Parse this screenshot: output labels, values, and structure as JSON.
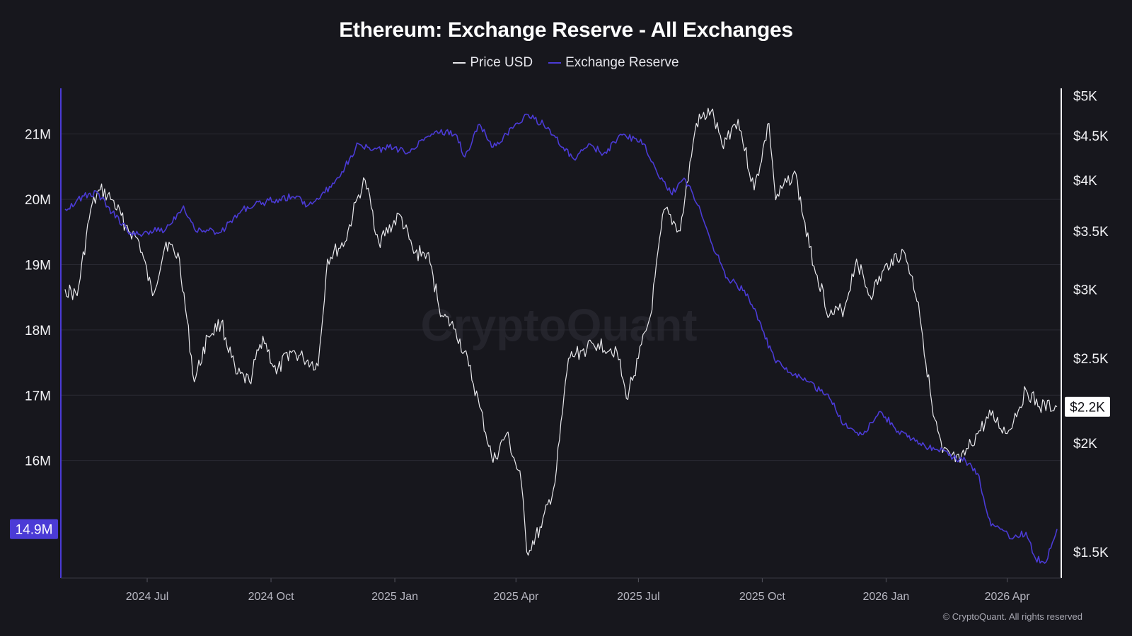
{
  "chart_data": {
    "type": "line",
    "title": "Ethereum: Exchange Reserve - All Exchanges",
    "watermark": "CryptoQuant",
    "copyright": "© CryptoQuant. All rights reserved",
    "grid": true,
    "legend_placement": "top-center",
    "x_axis": {
      "range": [
        "2024-05-01",
        "2026-05-08"
      ],
      "ticks": [
        {
          "date": "2024-07-01",
          "label": "2024 Jul"
        },
        {
          "date": "2024-10-01",
          "label": "2024 Oct"
        },
        {
          "date": "2025-01-01",
          "label": "2025 Jan"
        },
        {
          "date": "2025-04-01",
          "label": "2025 Apr"
        },
        {
          "date": "2025-07-01",
          "label": "2025 Jul"
        },
        {
          "date": "2025-10-01",
          "label": "2025 Oct"
        },
        {
          "date": "2026-01-01",
          "label": "2026 Jan"
        },
        {
          "date": "2026-04-01",
          "label": "2026 Apr"
        }
      ]
    },
    "y_left": {
      "series": "Exchange Reserve",
      "unit": "ETH",
      "range": [
        14200000,
        21700000
      ],
      "ticks": [
        {
          "value": 21000000,
          "label": "21M"
        },
        {
          "value": 20000000,
          "label": "20M"
        },
        {
          "value": 19000000,
          "label": "19M"
        },
        {
          "value": 18000000,
          "label": "18M"
        },
        {
          "value": 17000000,
          "label": "17M"
        },
        {
          "value": 16000000,
          "label": "16M"
        }
      ],
      "current_label": "14.9M"
    },
    "y_right": {
      "series": "Price USD",
      "scale": "log",
      "range": [
        1400,
        5100
      ],
      "ticks": [
        {
          "value": 5000,
          "label": "$5K"
        },
        {
          "value": 4500,
          "label": "$4.5K"
        },
        {
          "value": 4000,
          "label": "$4K"
        },
        {
          "value": 3500,
          "label": "$3.5K"
        },
        {
          "value": 3000,
          "label": "$3K"
        },
        {
          "value": 2500,
          "label": "$2.5K"
        },
        {
          "value": 2000,
          "label": "$2K"
        },
        {
          "value": 1500,
          "label": "$1.5K"
        }
      ],
      "current_label": "$2.2K"
    },
    "series": [
      {
        "name": "Price USD",
        "axis": "right",
        "color": "#e8e8ec",
        "points": [
          [
            "2024-05-01",
            3000
          ],
          [
            "2024-05-10",
            2950
          ],
          [
            "2024-05-20",
            3700
          ],
          [
            "2024-05-27",
            3900
          ],
          [
            "2024-06-05",
            3800
          ],
          [
            "2024-06-15",
            3550
          ],
          [
            "2024-06-25",
            3400
          ],
          [
            "2024-07-05",
            2950
          ],
          [
            "2024-07-15",
            3400
          ],
          [
            "2024-07-25",
            3250
          ],
          [
            "2024-08-05",
            2350
          ],
          [
            "2024-08-15",
            2650
          ],
          [
            "2024-08-25",
            2750
          ],
          [
            "2024-09-05",
            2400
          ],
          [
            "2024-09-15",
            2350
          ],
          [
            "2024-09-25",
            2650
          ],
          [
            "2024-10-05",
            2400
          ],
          [
            "2024-10-15",
            2550
          ],
          [
            "2024-10-25",
            2500
          ],
          [
            "2024-11-05",
            2450
          ],
          [
            "2024-11-12",
            3250
          ],
          [
            "2024-11-25",
            3400
          ],
          [
            "2024-12-05",
            3850
          ],
          [
            "2024-12-10",
            4000
          ],
          [
            "2024-12-20",
            3400
          ],
          [
            "2025-01-05",
            3650
          ],
          [
            "2025-01-15",
            3300
          ],
          [
            "2025-01-25",
            3300
          ],
          [
            "2025-02-05",
            2800
          ],
          [
            "2025-02-15",
            2700
          ],
          [
            "2025-02-25",
            2450
          ],
          [
            "2025-03-05",
            2200
          ],
          [
            "2025-03-15",
            1900
          ],
          [
            "2025-03-25",
            2050
          ],
          [
            "2025-04-05",
            1800
          ],
          [
            "2025-04-09",
            1500
          ],
          [
            "2025-04-20",
            1600
          ],
          [
            "2025-04-30",
            1800
          ],
          [
            "2025-05-10",
            2500
          ],
          [
            "2025-05-20",
            2550
          ],
          [
            "2025-06-01",
            2600
          ],
          [
            "2025-06-15",
            2550
          ],
          [
            "2025-06-22",
            2250
          ],
          [
            "2025-07-01",
            2500
          ],
          [
            "2025-07-10",
            2800
          ],
          [
            "2025-07-20",
            3700
          ],
          [
            "2025-08-01",
            3500
          ],
          [
            "2025-08-13",
            4650
          ],
          [
            "2025-08-24",
            4800
          ],
          [
            "2025-09-01",
            4400
          ],
          [
            "2025-09-13",
            4700
          ],
          [
            "2025-09-25",
            3900
          ],
          [
            "2025-10-06",
            4650
          ],
          [
            "2025-10-11",
            3800
          ],
          [
            "2025-10-25",
            4100
          ],
          [
            "2025-11-05",
            3350
          ],
          [
            "2025-11-20",
            2800
          ],
          [
            "2025-12-01",
            2850
          ],
          [
            "2025-12-10",
            3250
          ],
          [
            "2025-12-20",
            2950
          ],
          [
            "2026-01-05",
            3250
          ],
          [
            "2026-01-15",
            3300
          ],
          [
            "2026-01-25",
            2900
          ],
          [
            "2026-02-05",
            2150
          ],
          [
            "2026-02-12",
            1950
          ],
          [
            "2026-02-25",
            1900
          ],
          [
            "2026-03-10",
            2050
          ],
          [
            "2026-03-20",
            2150
          ],
          [
            "2026-04-01",
            2050
          ],
          [
            "2026-04-15",
            2300
          ],
          [
            "2026-04-25",
            2200
          ],
          [
            "2026-05-08",
            2200
          ]
        ]
      },
      {
        "name": "Exchange Reserve",
        "axis": "left",
        "color": "#4b3bd6",
        "points": [
          [
            "2024-05-01",
            19850000
          ],
          [
            "2024-05-15",
            20050000
          ],
          [
            "2024-05-25",
            20100000
          ],
          [
            "2024-06-05",
            19800000
          ],
          [
            "2024-06-20",
            19450000
          ],
          [
            "2024-07-01",
            19500000
          ],
          [
            "2024-07-15",
            19550000
          ],
          [
            "2024-07-28",
            19900000
          ],
          [
            "2024-08-05",
            19550000
          ],
          [
            "2024-08-25",
            19500000
          ],
          [
            "2024-09-10",
            19850000
          ],
          [
            "2024-09-25",
            19950000
          ],
          [
            "2024-10-05",
            20000000
          ],
          [
            "2024-10-20",
            20050000
          ],
          [
            "2024-10-28",
            19900000
          ],
          [
            "2024-11-10",
            20100000
          ],
          [
            "2024-11-25",
            20500000
          ],
          [
            "2024-12-05",
            20850000
          ],
          [
            "2024-12-15",
            20750000
          ],
          [
            "2025-01-01",
            20800000
          ],
          [
            "2025-01-10",
            20700000
          ],
          [
            "2025-01-20",
            20900000
          ],
          [
            "2025-02-01",
            21050000
          ],
          [
            "2025-02-15",
            21000000
          ],
          [
            "2025-02-22",
            20650000
          ],
          [
            "2025-03-05",
            21150000
          ],
          [
            "2025-03-15",
            20800000
          ],
          [
            "2025-03-25",
            21000000
          ],
          [
            "2025-04-10",
            21300000
          ],
          [
            "2025-04-25",
            21100000
          ],
          [
            "2025-05-05",
            20800000
          ],
          [
            "2025-05-15",
            20600000
          ],
          [
            "2025-05-25",
            20850000
          ],
          [
            "2025-06-05",
            20700000
          ],
          [
            "2025-06-20",
            21000000
          ],
          [
            "2025-07-05",
            20850000
          ],
          [
            "2025-07-15",
            20400000
          ],
          [
            "2025-07-25",
            20100000
          ],
          [
            "2025-08-05",
            20300000
          ],
          [
            "2025-08-15",
            19900000
          ],
          [
            "2025-08-25",
            19300000
          ],
          [
            "2025-09-05",
            18800000
          ],
          [
            "2025-09-20",
            18550000
          ],
          [
            "2025-10-01",
            18000000
          ],
          [
            "2025-10-10",
            17550000
          ],
          [
            "2025-10-20",
            17350000
          ],
          [
            "2025-11-05",
            17200000
          ],
          [
            "2025-11-20",
            16950000
          ],
          [
            "2025-12-01",
            16550000
          ],
          [
            "2025-12-15",
            16400000
          ],
          [
            "2025-12-28",
            16750000
          ],
          [
            "2026-01-10",
            16450000
          ],
          [
            "2026-01-25",
            16250000
          ],
          [
            "2026-02-05",
            16200000
          ],
          [
            "2026-02-20",
            16050000
          ],
          [
            "2026-03-01",
            16000000
          ],
          [
            "2026-03-10",
            15800000
          ],
          [
            "2026-03-20",
            15000000
          ],
          [
            "2026-03-28",
            14950000
          ],
          [
            "2026-04-05",
            14800000
          ],
          [
            "2026-04-15",
            14900000
          ],
          [
            "2026-04-22",
            14500000
          ],
          [
            "2026-04-30",
            14450000
          ],
          [
            "2026-05-08",
            14950000
          ]
        ]
      }
    ]
  }
}
